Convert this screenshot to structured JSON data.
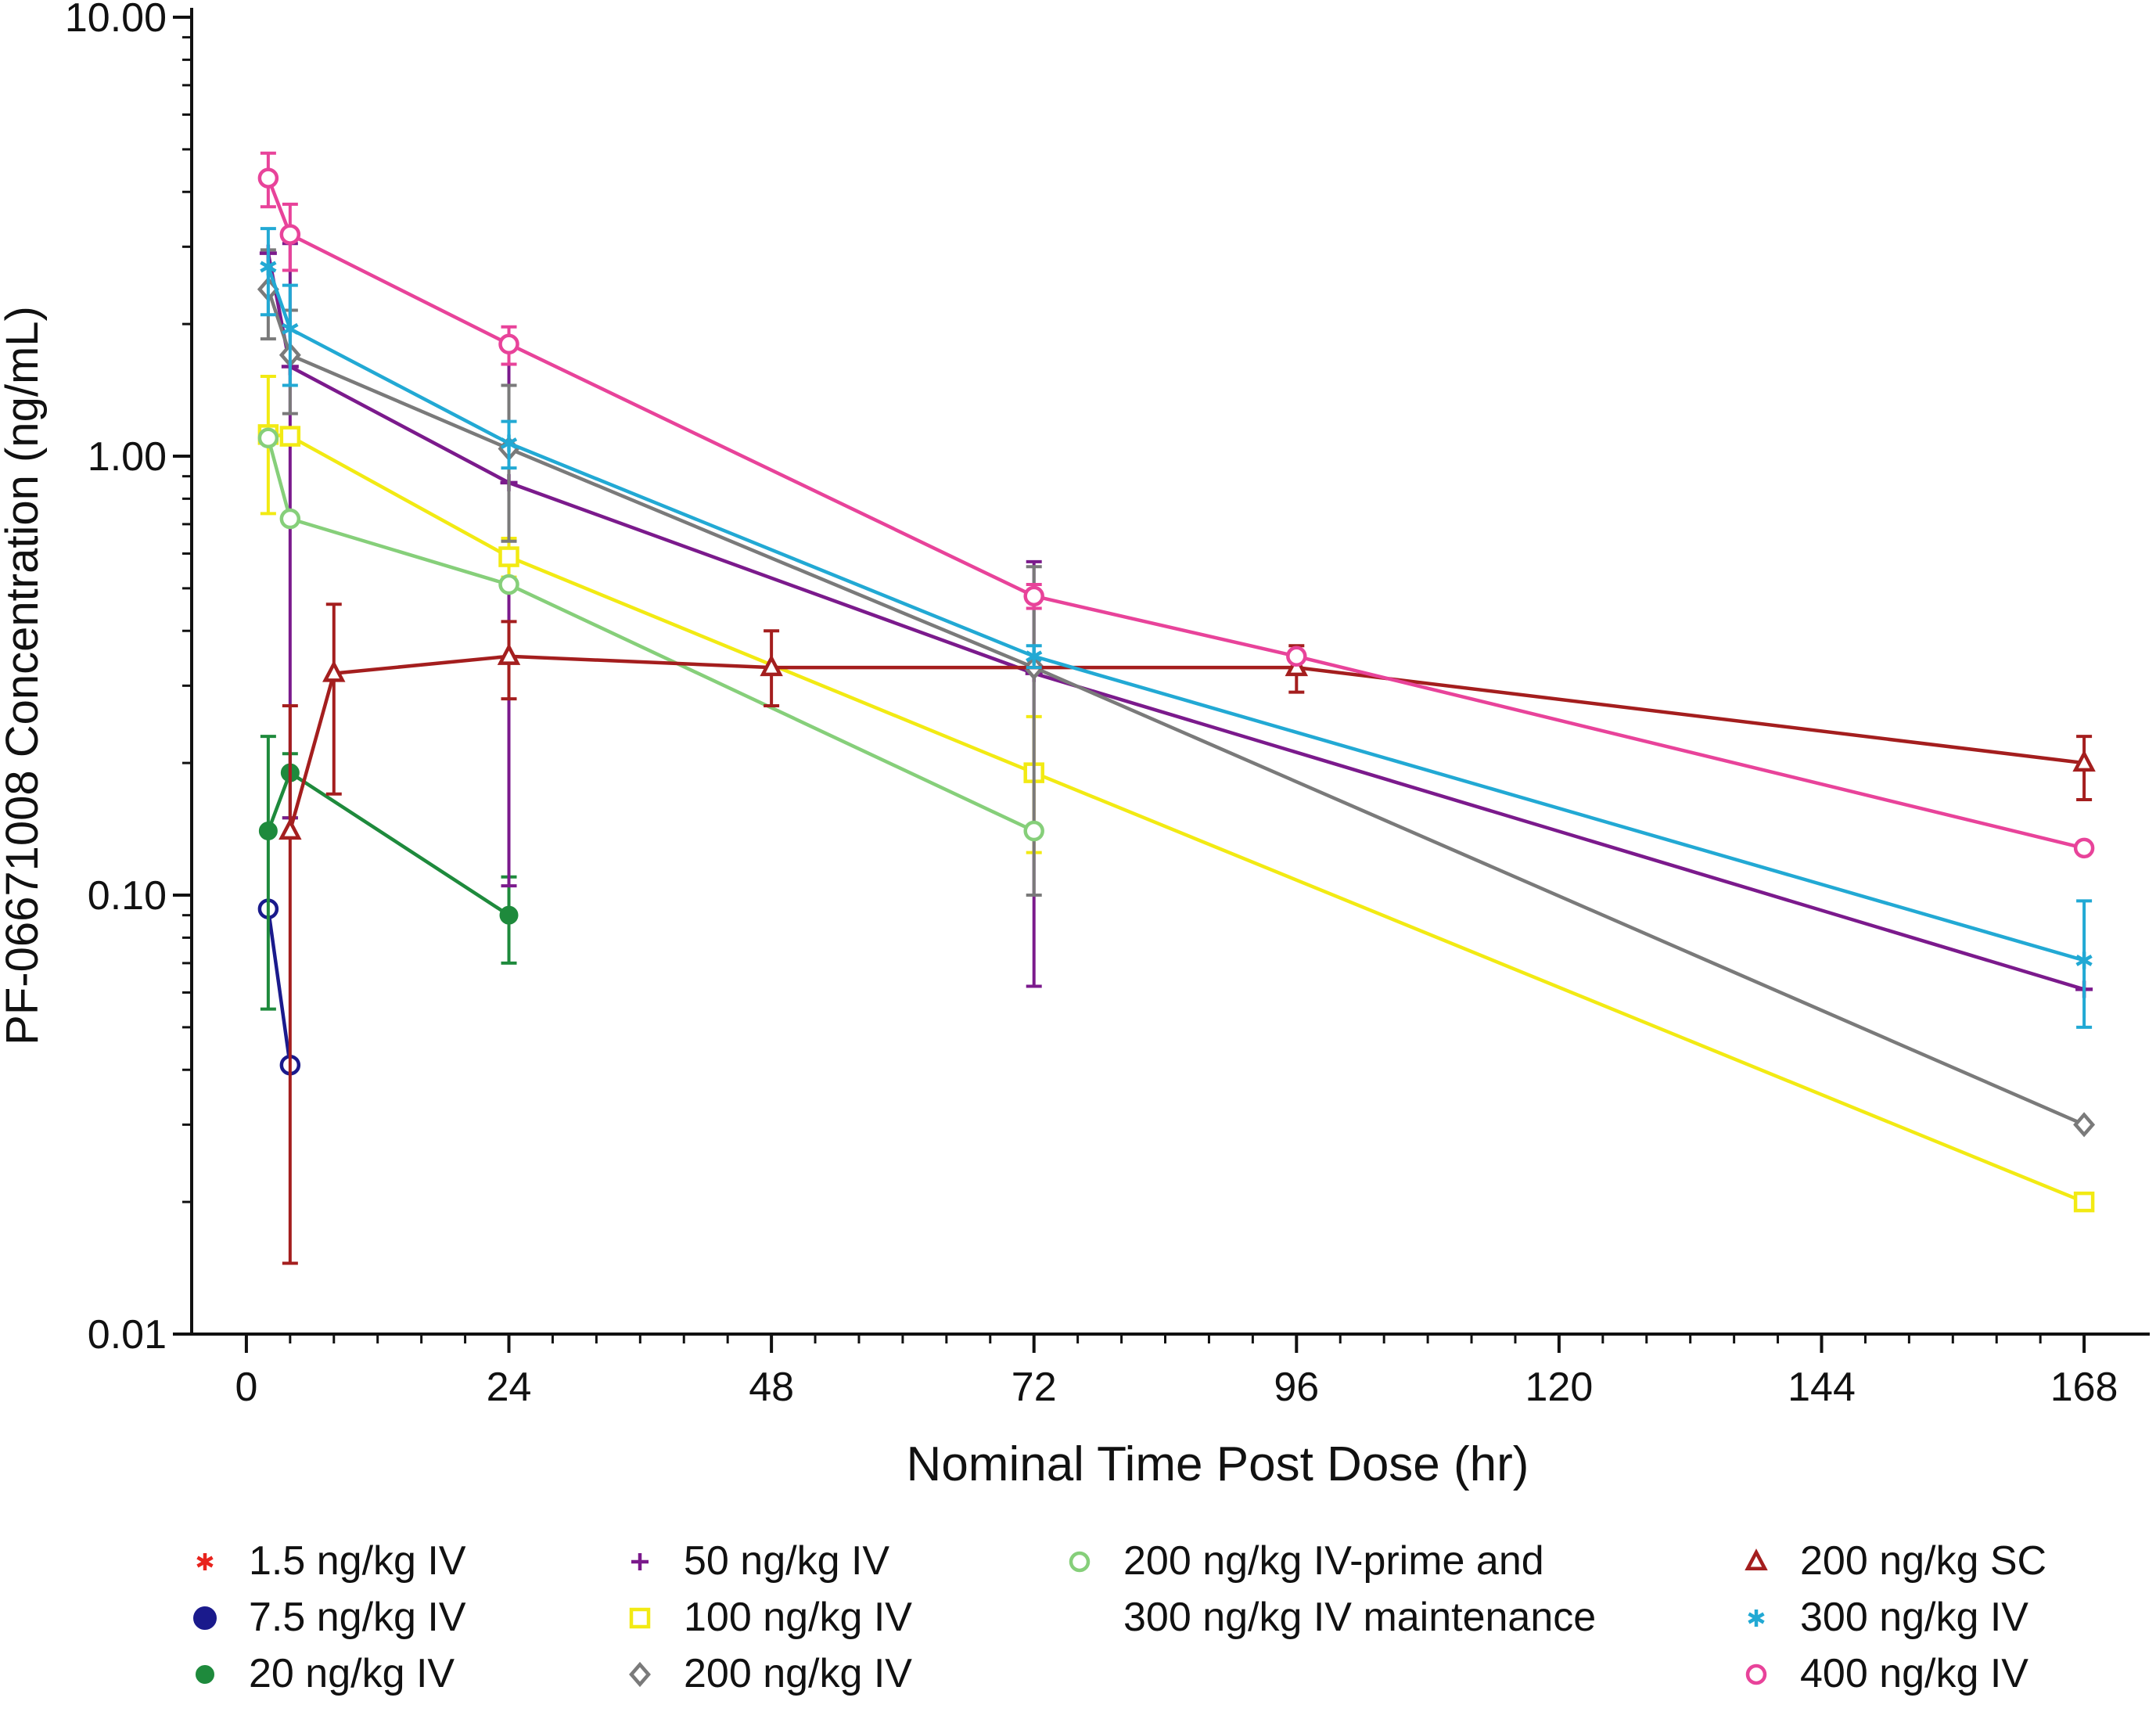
{
  "chart_data": {
    "type": "line",
    "title": "",
    "xlabel": "Nominal Time Post Dose (hr)",
    "ylabel": "PF-06671008 Concentration (ng/mL)",
    "xlim": [
      -5,
      174
    ],
    "ylim": [
      0.01,
      10
    ],
    "yscale": "log",
    "xticks": [
      0,
      24,
      48,
      72,
      96,
      120,
      144,
      168
    ],
    "xtick_labels": [
      "0",
      "24",
      "48",
      "72",
      "96",
      "120",
      "144",
      "168"
    ],
    "yticks": [
      0.01,
      0.1,
      1,
      10
    ],
    "ytick_labels": [
      "0.01",
      "0.10",
      "1.00",
      "10.00"
    ],
    "legend_position": "bottom",
    "series": [
      {
        "name": "1.5 ng/kg IV",
        "color": "#e8231d",
        "marker": "asterisk",
        "show_line": false,
        "points": []
      },
      {
        "name": "7.5 ng/kg IV",
        "color": "#1a1a8c",
        "marker": "circle-open",
        "legend_marker": "circle-filled",
        "points": [
          {
            "x": 2,
            "y": 0.093
          },
          {
            "x": 4,
            "y": 0.041
          }
        ]
      },
      {
        "name": "20 ng/kg IV",
        "color": "#1e8a3c",
        "marker": "circle-filled",
        "points": [
          {
            "x": 2,
            "y": 0.14,
            "lo": 0.055,
            "hi": 0.23
          },
          {
            "x": 4,
            "y": 0.19,
            "lo": 0.15,
            "hi": 0.21
          },
          {
            "x": 24,
            "y": 0.09,
            "lo": 0.07,
            "hi": 0.11
          }
        ]
      },
      {
        "name": "50 ng/kg IV",
        "color": "#7b1a8c",
        "marker": "plus",
        "points": [
          {
            "x": 2,
            "y": 2.9
          },
          {
            "x": 4,
            "y": 1.6,
            "lo": 0.15,
            "hi": 3.05
          },
          {
            "x": 24,
            "y": 0.87,
            "lo": 0.105,
            "hi": 1.62
          },
          {
            "x": 72,
            "y": 0.32,
            "lo": 0.062,
            "hi": 0.575
          },
          {
            "x": 168,
            "y": 0.061
          }
        ]
      },
      {
        "name": "100 ng/kg IV",
        "color": "#f2ea13",
        "marker": "square-open",
        "points": [
          {
            "x": 2,
            "y": 1.12,
            "lo": 0.74,
            "hi": 1.52
          },
          {
            "x": 4,
            "y": 1.11
          },
          {
            "x": 24,
            "y": 0.59,
            "lo": 0.53,
            "hi": 0.65
          },
          {
            "x": 72,
            "y": 0.19,
            "lo": 0.125,
            "hi": 0.255
          },
          {
            "x": 168,
            "y": 0.02
          }
        ]
      },
      {
        "name": "200 ng/kg IV",
        "color": "#7a7a7a",
        "marker": "diamond-open",
        "points": [
          {
            "x": 2,
            "y": 2.4,
            "lo": 1.85,
            "hi": 2.95
          },
          {
            "x": 4,
            "y": 1.7,
            "lo": 1.25,
            "hi": 2.15
          },
          {
            "x": 24,
            "y": 1.04,
            "lo": 0.64,
            "hi": 1.45
          },
          {
            "x": 72,
            "y": 0.33,
            "lo": 0.1,
            "hi": 0.56
          },
          {
            "x": 168,
            "y": 0.03
          }
        ]
      },
      {
        "name": "200 ng/kg IV-prime and\n300 ng/kg IV maintenance",
        "color": "#86cf7a",
        "marker": "circle-open",
        "points": [
          {
            "x": 2,
            "y": 1.1
          },
          {
            "x": 4,
            "y": 0.72
          },
          {
            "x": 24,
            "y": 0.51
          },
          {
            "x": 72,
            "y": 0.14
          }
        ]
      },
      {
        "name": "200 ng/kg SC",
        "color": "#a41e1e",
        "marker": "triangle-open",
        "points": [
          {
            "x": 4,
            "y": 0.14,
            "lo": 0.0145,
            "hi": 0.27
          },
          {
            "x": 8,
            "y": 0.32,
            "lo": 0.17,
            "hi": 0.46
          },
          {
            "x": 24,
            "y": 0.35,
            "lo": 0.28,
            "hi": 0.42
          },
          {
            "x": 48,
            "y": 0.33,
            "lo": 0.27,
            "hi": 0.4
          },
          {
            "x": 96,
            "y": 0.33,
            "lo": 0.29,
            "hi": 0.37
          },
          {
            "x": 168,
            "y": 0.2,
            "lo": 0.165,
            "hi": 0.23
          }
        ]
      },
      {
        "name": "300 ng/kg IV",
        "color": "#22a9d4",
        "marker": "asterisk",
        "points": [
          {
            "x": 2,
            "y": 2.7,
            "lo": 2.1,
            "hi": 3.3
          },
          {
            "x": 4,
            "y": 1.95,
            "lo": 1.45,
            "hi": 2.45
          },
          {
            "x": 24,
            "y": 1.07,
            "lo": 0.94,
            "hi": 1.2
          },
          {
            "x": 72,
            "y": 0.35,
            "lo": 0.33,
            "hi": 0.37
          },
          {
            "x": 168,
            "y": 0.071,
            "lo": 0.05,
            "hi": 0.097
          }
        ]
      },
      {
        "name": "400 ng/kg IV",
        "color": "#e8439a",
        "marker": "circle-open",
        "points": [
          {
            "x": 2,
            "y": 4.3,
            "lo": 3.7,
            "hi": 4.9
          },
          {
            "x": 4,
            "y": 3.2,
            "lo": 2.65,
            "hi": 3.75
          },
          {
            "x": 24,
            "y": 1.8,
            "lo": 1.62,
            "hi": 1.97
          },
          {
            "x": 72,
            "y": 0.48,
            "lo": 0.45,
            "hi": 0.51
          },
          {
            "x": 96,
            "y": 0.35
          },
          {
            "x": 168,
            "y": 0.128,
            "lo": 0.125,
            "hi": 0.13
          }
        ]
      }
    ]
  }
}
